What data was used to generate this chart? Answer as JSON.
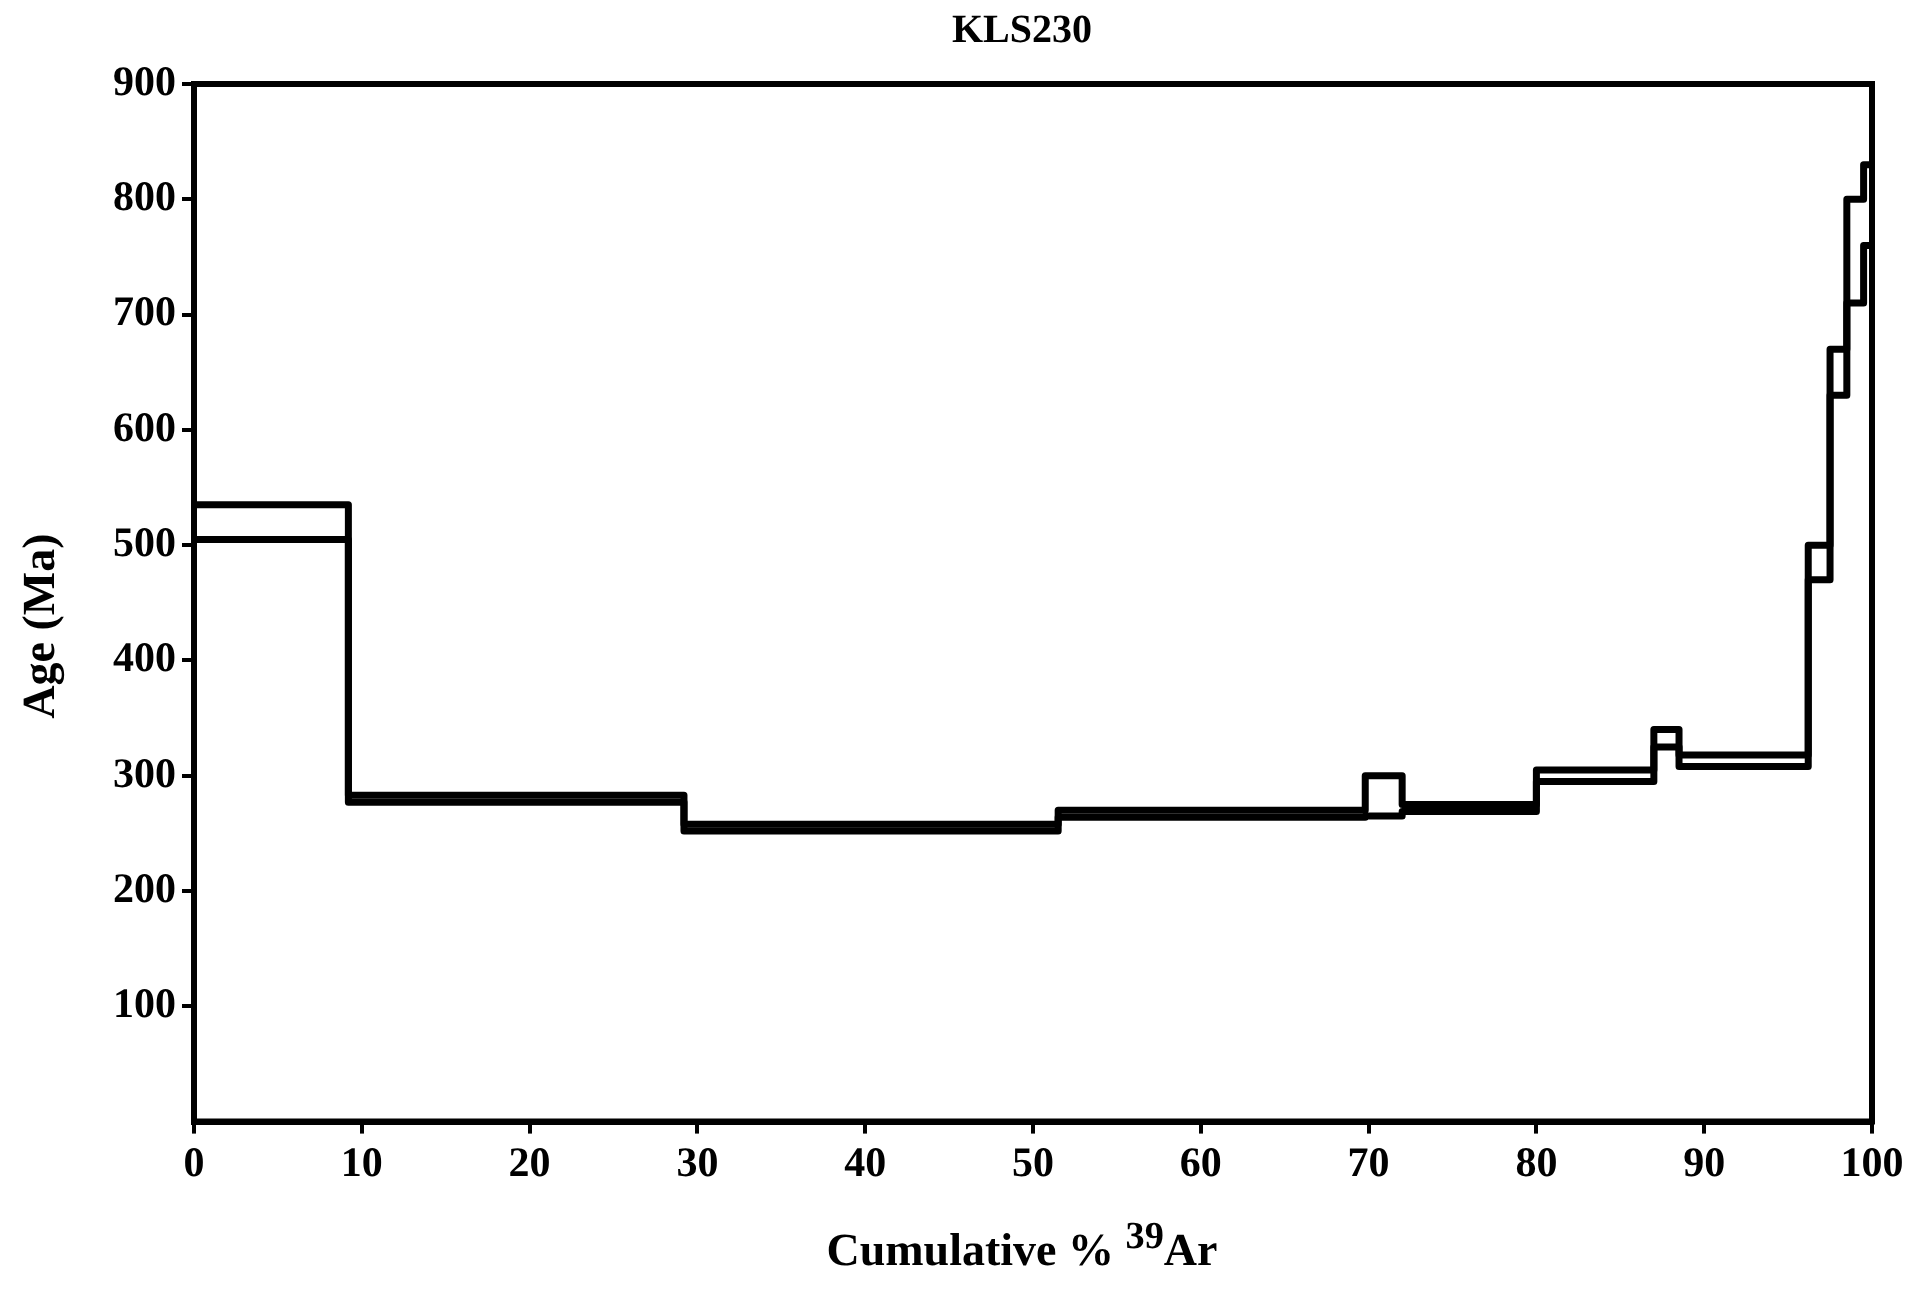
{
  "chart_data": {
    "type": "step",
    "title": "KLS230",
    "xlabel": "Cumulative % $^{39}$Ar",
    "ylabel": "Age (Ma)",
    "x": [
      0,
      9.2,
      29.2,
      51.5,
      69.8,
      72,
      80,
      87,
      88.5,
      96.2,
      97.5,
      98.5,
      99.5,
      100
    ],
    "series": [
      {
        "color": "#000000",
        "values": [
          535,
          283,
          258,
          270,
          300,
          275,
          305,
          340,
          318,
          500,
          670,
          800,
          830,
          830
        ]
      },
      {
        "color": "#000000",
        "values": [
          505,
          277,
          252,
          264,
          265,
          269,
          295,
          325,
          308,
          470,
          630,
          710,
          760,
          760
        ]
      }
    ],
    "xlim": [
      0,
      100
    ],
    "xticks": [
      0,
      10,
      20,
      30,
      40,
      50,
      60,
      70,
      80,
      90,
      100
    ],
    "ylim": [
      0,
      900
    ],
    "yticks": [
      100,
      200,
      300,
      400,
      500,
      600,
      700,
      800,
      900
    ],
    "grid": false,
    "legend": false,
    "marker": "none",
    "line_style": "solid"
  }
}
